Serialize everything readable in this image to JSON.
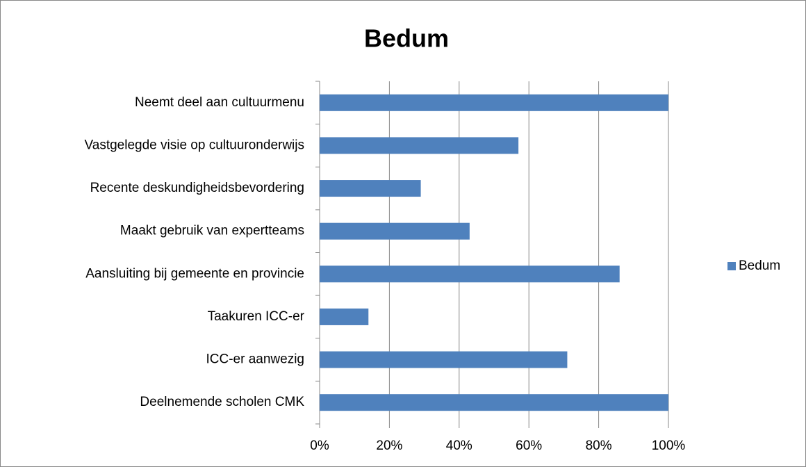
{
  "chart_data": {
    "type": "bar",
    "orientation": "horizontal",
    "title": "Bedum",
    "categories": [
      "Neemt deel aan cultuurmenu",
      "Vastgelegde visie op cultuuronderwijs",
      "Recente deskundigheidsbevordering",
      "Maakt gebruik van expertteams",
      "Aansluiting bij gemeente en provincie",
      "Taakuren ICC-er",
      "ICC-er aanwezig",
      "Deelnemende scholen CMK"
    ],
    "series": [
      {
        "name": "Bedum",
        "color": "#4f81bd",
        "values": [
          100,
          57,
          29,
          43,
          86,
          14,
          71,
          100
        ]
      }
    ],
    "xlim": [
      0,
      100
    ],
    "xticks": [
      {
        "value": 0,
        "label": "0%"
      },
      {
        "value": 20,
        "label": "20%"
      },
      {
        "value": 40,
        "label": "40%"
      },
      {
        "value": 60,
        "label": "60%"
      },
      {
        "value": 80,
        "label": "80%"
      },
      {
        "value": 100,
        "label": "100%"
      }
    ],
    "grid": true,
    "legend": "right"
  }
}
